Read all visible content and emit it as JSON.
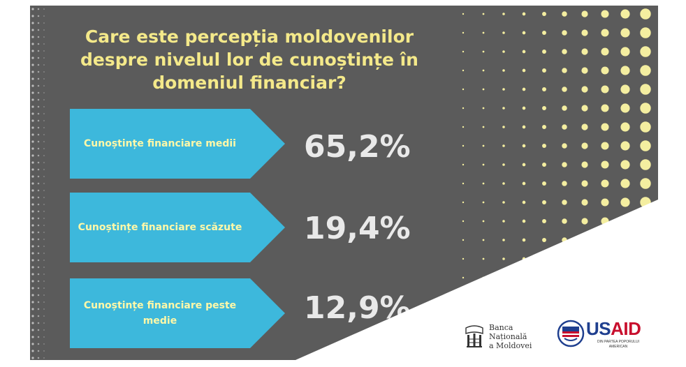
{
  "title": "Care este percepția moldovenilor despre nivelul lor de cunoștințe în domeniul financiar?",
  "items": [
    {
      "label": "Cunoștințe financiare medii",
      "value": "65,2%"
    },
    {
      "label": "Cunoștințe financiare scăzute",
      "value": "19,4%"
    },
    {
      "label": "Cunoștințe financiare peste medie",
      "value": "12,9%"
    }
  ],
  "logos": {
    "bnm_line1": "Banca",
    "bnm_line2": "Națională",
    "bnm_line3": "a Moldovei",
    "usaid_name": "USAID",
    "usaid_sub": "DIN PARTEA POPORULUI AMERICAN"
  },
  "colors": {
    "background": "#5b5b5b",
    "title": "#f4e98a",
    "arrow": "#3db8dc",
    "arrow_text": "#fff8a8",
    "value": "#e9e9e9",
    "dots": "#f4eea0",
    "usaid_blue": "#1f3f8f",
    "usaid_red": "#c8102e"
  }
}
